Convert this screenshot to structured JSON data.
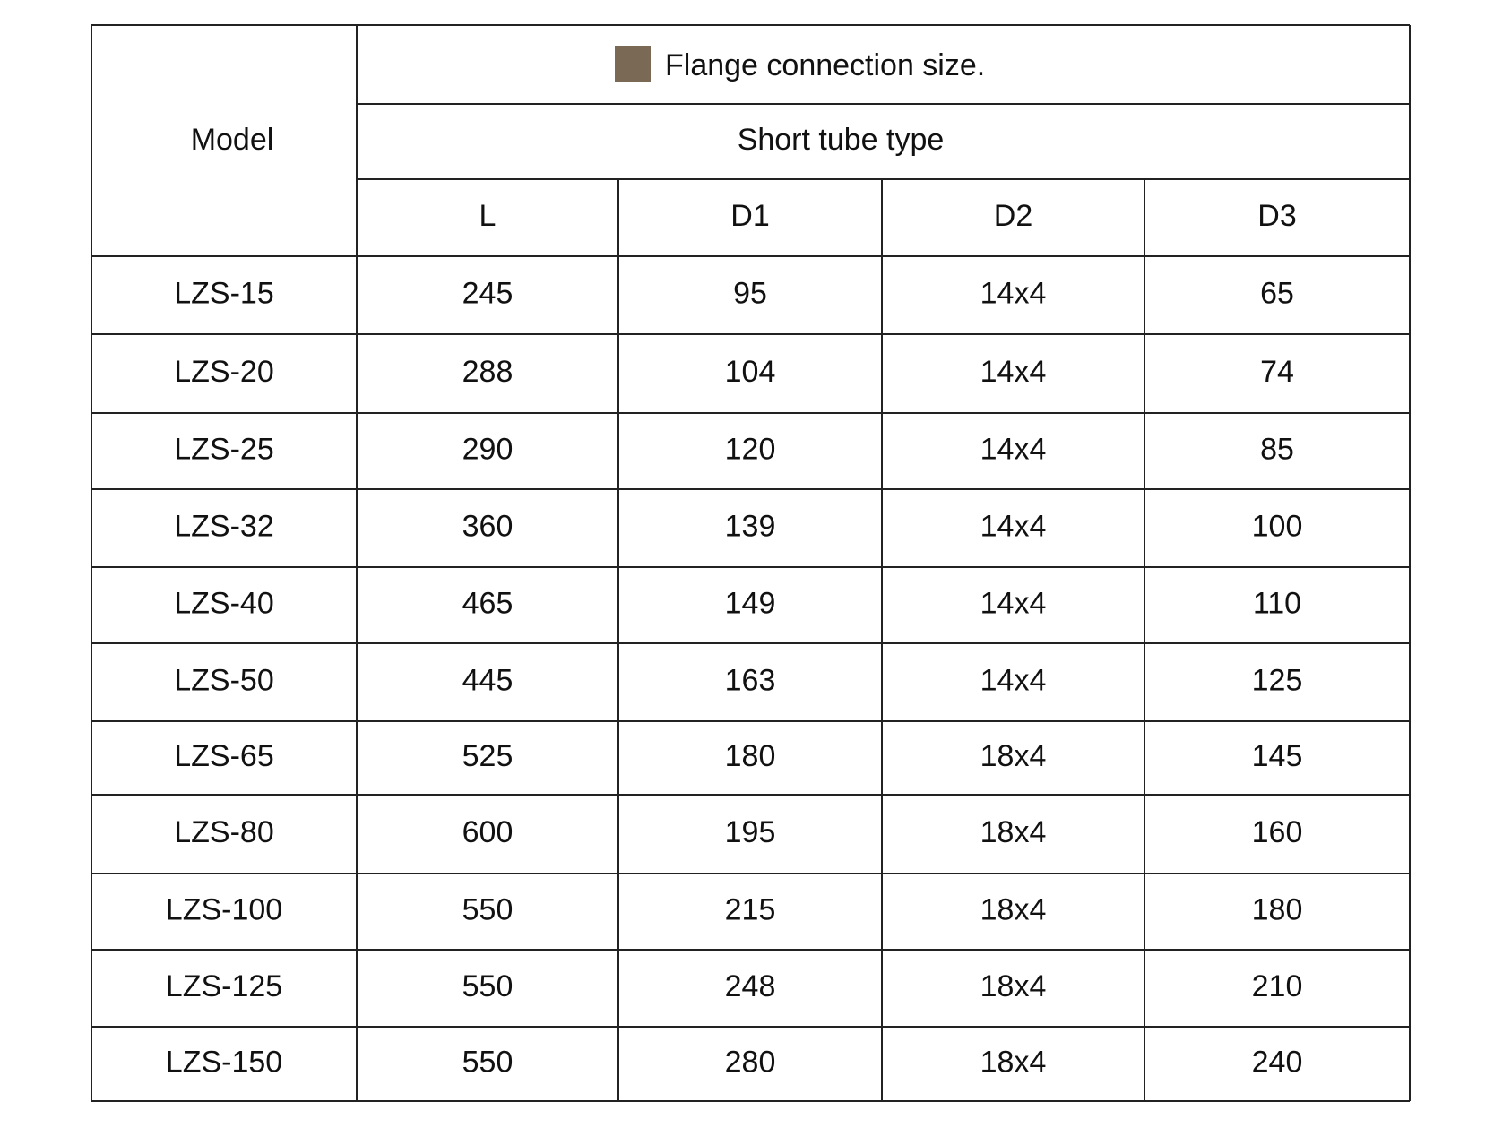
{
  "header": {
    "model": "Model",
    "title": "Flange connection size.",
    "subtitle": "Short tube type",
    "columns": [
      "L",
      "D1",
      "D2",
      "D3"
    ]
  },
  "table": {
    "rows": [
      [
        "LZS-15",
        "245",
        "95",
        "14x4",
        "65"
      ],
      [
        "LZS-20",
        "288",
        "104",
        "14x4",
        "74"
      ],
      [
        "LZS-25",
        "290",
        "120",
        "14x4",
        "85"
      ],
      [
        "LZS-32",
        "360",
        "139",
        "14x4",
        "100"
      ],
      [
        "LZS-40",
        "465",
        "149",
        "14x4",
        "110"
      ],
      [
        "LZS-50",
        "445",
        "163",
        "14x4",
        "125"
      ],
      [
        "LZS-65",
        "525",
        "180",
        "18x4",
        "145"
      ],
      [
        "LZS-80",
        "600",
        "195",
        "18x4",
        "160"
      ],
      [
        "LZS-100",
        "550",
        "215",
        "18x4",
        "180"
      ],
      [
        "LZS-125",
        "550",
        "248",
        "18x4",
        "210"
      ],
      [
        "LZS-150",
        "550",
        "280",
        "18x4",
        "240"
      ]
    ]
  }
}
